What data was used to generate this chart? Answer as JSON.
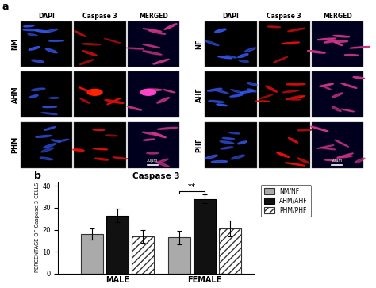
{
  "title": "Caspase 3",
  "ylabel": "PERCENTAGE OF Caspase 3 CELLS",
  "groups": [
    "MALE",
    "FEMALE"
  ],
  "series": [
    "NM/NF",
    "AHM/AHF",
    "PHM/PHF"
  ],
  "values": {
    "MALE": [
      18.0,
      26.5,
      17.0
    ],
    "FEMALE": [
      16.5,
      34.0,
      20.5
    ]
  },
  "errors": {
    "MALE": [
      2.5,
      3.0,
      3.0
    ],
    "FEMALE": [
      3.0,
      2.0,
      3.5
    ]
  },
  "bar_colors": [
    "#aaaaaa",
    "#111111",
    "#ffffff"
  ],
  "bar_edgecolors": [
    "#333333",
    "#000000",
    "#333333"
  ],
  "hatch_patterns": [
    "",
    "",
    "////"
  ],
  "ylim": [
    0,
    42
  ],
  "yticks": [
    0,
    10,
    20,
    30,
    40
  ],
  "bar_width": 0.18,
  "significance": {
    "group": "FEMALE",
    "from_series": 0,
    "to_series": 1,
    "label": "**",
    "y": 37.5
  },
  "figure_bgcolor": "#ffffff",
  "axes_bgcolor": "#ffffff",
  "panel_labels_top": [
    "DAPI",
    "Caspase 3",
    "MERGED"
  ],
  "row_labels_left": [
    "NM",
    "AHM",
    "PHM"
  ],
  "row_labels_right": [
    "NF",
    "AHF",
    "PHF"
  ]
}
